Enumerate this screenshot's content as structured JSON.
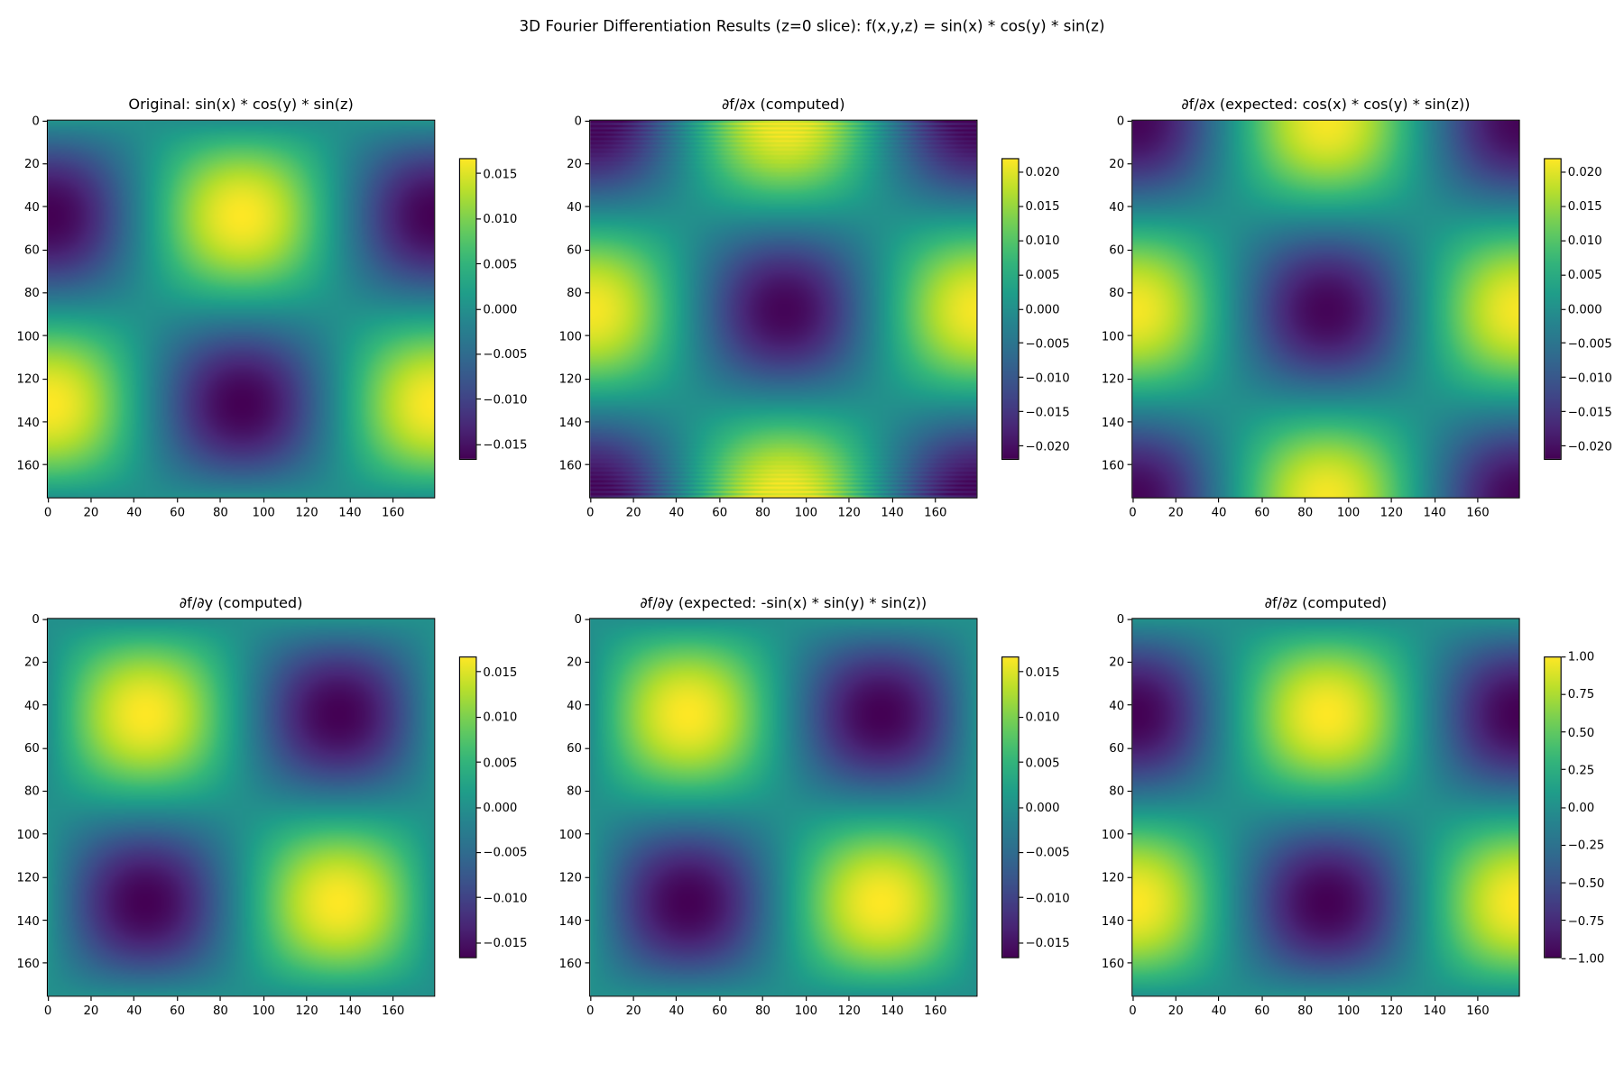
{
  "suptitle": "3D Fourier Differentiation Results (z=0 slice): f(x,y,z) = sin(x) * cos(y) * sin(z)",
  "chart_data": [
    {
      "type": "heatmap",
      "title": "Original: sin(x) * cos(y) * sin(z)",
      "pattern": "-cos(x)*sin(y)",
      "amplitude": 0.0167,
      "vlim": [
        -0.0167,
        0.0167
      ],
      "ncols": 180,
      "nrows": 176,
      "xticks": [
        0,
        20,
        40,
        60,
        80,
        100,
        120,
        140,
        160
      ],
      "yticks": [
        0,
        20,
        40,
        60,
        80,
        100,
        120,
        140,
        160
      ],
      "cbar_ticks": [
        -0.015,
        -0.01,
        -0.005,
        0.0,
        0.005,
        0.01,
        0.015
      ],
      "cbar_labels": [
        "−0.015",
        "−0.010",
        "−0.005",
        "0.000",
        "0.005",
        "0.010",
        "0.015"
      ],
      "colormap": "viridis",
      "ringing": 0
    },
    {
      "type": "heatmap",
      "title": "∂f/∂x (computed)",
      "pattern": "-cos(x)*cos(y)",
      "amplitude": 0.0215,
      "vlim": [
        -0.022,
        0.022
      ],
      "ncols": 180,
      "nrows": 176,
      "xticks": [
        0,
        20,
        40,
        60,
        80,
        100,
        120,
        140,
        160
      ],
      "yticks": [
        0,
        20,
        40,
        60,
        80,
        100,
        120,
        140,
        160
      ],
      "cbar_ticks": [
        -0.02,
        -0.015,
        -0.01,
        -0.005,
        0.0,
        0.005,
        0.01,
        0.015,
        0.02
      ],
      "cbar_labels": [
        "−0.020",
        "−0.015",
        "−0.010",
        "−0.005",
        "0.000",
        "0.005",
        "0.010",
        "0.015",
        "0.020"
      ],
      "colormap": "viridis",
      "ringing": 0.003
    },
    {
      "type": "heatmap",
      "title": "∂f/∂x (expected: cos(x) * cos(y) * sin(z))",
      "pattern": "-cos(x)*cos(y)",
      "amplitude": 0.0215,
      "vlim": [
        -0.022,
        0.022
      ],
      "ncols": 180,
      "nrows": 176,
      "xticks": [
        0,
        20,
        40,
        60,
        80,
        100,
        120,
        140,
        160
      ],
      "yticks": [
        0,
        20,
        40,
        60,
        80,
        100,
        120,
        140,
        160
      ],
      "cbar_ticks": [
        -0.02,
        -0.015,
        -0.01,
        -0.005,
        0.0,
        0.005,
        0.01,
        0.015,
        0.02
      ],
      "cbar_labels": [
        "−0.020",
        "−0.015",
        "−0.010",
        "−0.005",
        "0.000",
        "0.005",
        "0.010",
        "0.015",
        "0.020"
      ],
      "colormap": "viridis",
      "ringing": 0
    },
    {
      "type": "heatmap",
      "title": "∂f/∂y (computed)",
      "pattern": "sin(x)*sin(y)",
      "amplitude": 0.0167,
      "vlim": [
        -0.0167,
        0.0167
      ],
      "ncols": 180,
      "nrows": 176,
      "xticks": [
        0,
        20,
        40,
        60,
        80,
        100,
        120,
        140,
        160
      ],
      "yticks": [
        0,
        20,
        40,
        60,
        80,
        100,
        120,
        140,
        160
      ],
      "cbar_ticks": [
        -0.015,
        -0.01,
        -0.005,
        0.0,
        0.005,
        0.01,
        0.015
      ],
      "cbar_labels": [
        "−0.015",
        "−0.010",
        "−0.005",
        "0.000",
        "0.005",
        "0.010",
        "0.015"
      ],
      "colormap": "viridis",
      "ringing": 0
    },
    {
      "type": "heatmap",
      "title": "∂f/∂y (expected: -sin(x) * sin(y) * sin(z))",
      "pattern": "sin(x)*sin(y)",
      "amplitude": 0.0167,
      "vlim": [
        -0.0167,
        0.0167
      ],
      "ncols": 180,
      "nrows": 176,
      "xticks": [
        0,
        20,
        40,
        60,
        80,
        100,
        120,
        140,
        160
      ],
      "yticks": [
        0,
        20,
        40,
        60,
        80,
        100,
        120,
        140,
        160
      ],
      "cbar_ticks": [
        -0.015,
        -0.01,
        -0.005,
        0.0,
        0.005,
        0.01,
        0.015
      ],
      "cbar_labels": [
        "−0.015",
        "−0.010",
        "−0.005",
        "0.000",
        "0.005",
        "0.010",
        "0.015"
      ],
      "colormap": "viridis",
      "ringing": 0
    },
    {
      "type": "heatmap",
      "title": "∂f/∂z (computed)",
      "pattern": "-cos(x)*sin(y)",
      "amplitude": 1.0,
      "vlim": [
        -1.0,
        1.0
      ],
      "ncols": 180,
      "nrows": 176,
      "xticks": [
        0,
        20,
        40,
        60,
        80,
        100,
        120,
        140,
        160
      ],
      "yticks": [
        0,
        20,
        40,
        60,
        80,
        100,
        120,
        140,
        160
      ],
      "cbar_ticks": [
        -1.0,
        -0.75,
        -0.5,
        -0.25,
        0.0,
        0.25,
        0.5,
        0.75,
        1.0
      ],
      "cbar_labels": [
        "−1.00",
        "−0.75",
        "−0.50",
        "−0.25",
        "0.00",
        "0.25",
        "0.50",
        "0.75",
        "1.00"
      ],
      "colormap": "viridis",
      "ringing": 0
    }
  ]
}
